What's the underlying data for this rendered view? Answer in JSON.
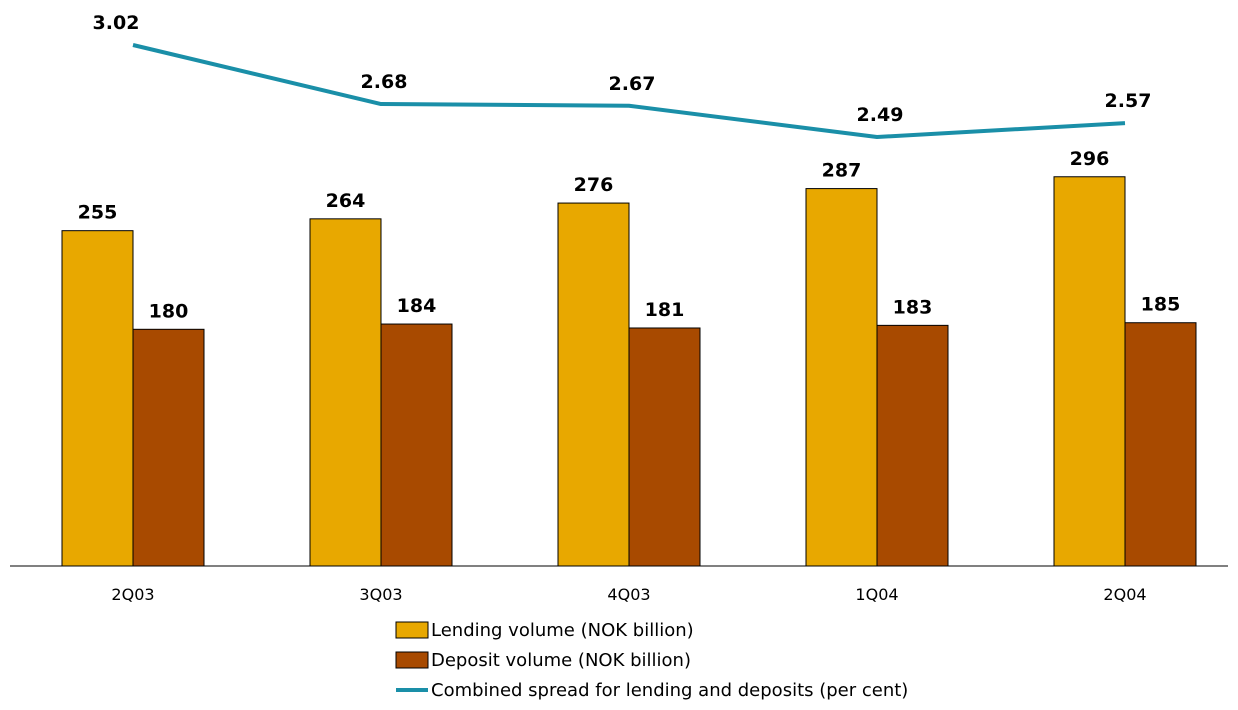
{
  "chart_data": {
    "type": "bar",
    "categories": [
      "2Q03",
      "3Q03",
      "4Q03",
      "1Q04",
      "2Q04"
    ],
    "series": [
      {
        "name": "Lending volume (NOK billion)",
        "kind": "bar",
        "color": "#E8A800",
        "values": [
          255,
          264,
          276,
          287,
          296
        ],
        "labels": [
          "255",
          "264",
          "276",
          "287",
          "296"
        ]
      },
      {
        "name": "Deposit volume (NOK billion)",
        "kind": "bar",
        "color": "#A84A00",
        "values": [
          180,
          184,
          181,
          183,
          185
        ],
        "labels": [
          "180",
          "184",
          "181",
          "183",
          "185"
        ]
      },
      {
        "name": "Combined spread for lending and deposits (per cent)",
        "kind": "line",
        "color": "#1A8FA8",
        "values": [
          3.02,
          2.68,
          2.67,
          2.49,
          2.57
        ],
        "labels": [
          "3.02",
          "2.68",
          "2.67",
          "2.49",
          "2.57"
        ]
      }
    ],
    "bar_ylim": [
      0,
      400
    ],
    "line_ylim": [
      0,
      3.3
    ],
    "grid": false,
    "legend_position": "bottom"
  }
}
